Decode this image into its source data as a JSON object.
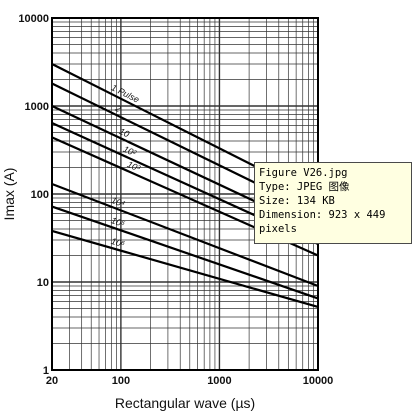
{
  "chart_data": {
    "type": "line",
    "xlabel": "Rectangular wave (µs)",
    "ylabel": "Imax (A)",
    "x_scale": "log",
    "y_scale": "log",
    "xlim": [
      20,
      10000
    ],
    "ylim": [
      1,
      10000
    ],
    "x_ticks": [
      "20",
      "100",
      "1000",
      "10000"
    ],
    "y_ticks": [
      "1",
      "10",
      "100",
      "1000",
      "10000"
    ],
    "grid": true,
    "series": [
      {
        "name": "1 Pulse",
        "x": [
          20,
          10000
        ],
        "y": [
          3000,
          90
        ]
      },
      {
        "name": "2",
        "x": [
          20,
          10000
        ],
        "y": [
          1800,
          60
        ]
      },
      {
        "name": "10",
        "x": [
          20,
          10000
        ],
        "y": [
          1000,
          38
        ]
      },
      {
        "name": "10²",
        "x": [
          20,
          10000
        ],
        "y": [
          640,
          27
        ]
      },
      {
        "name": "10³",
        "x": [
          20,
          10000
        ],
        "y": [
          440,
          20
        ]
      },
      {
        "name": "10⁴",
        "x": [
          20,
          10000
        ],
        "y": [
          130,
          9
        ]
      },
      {
        "name": "10⁵",
        "x": [
          20,
          10000
        ],
        "y": [
          72,
          6.5
        ]
      },
      {
        "name": "10⁶",
        "x": [
          20,
          10000
        ],
        "y": [
          38,
          5.2
        ]
      }
    ]
  },
  "tooltip": {
    "line1": "Figure V26.jpg",
    "line2": "Type: JPEG 图像",
    "line3": "Size: 134 KB",
    "line4": "Dimension: 923 x 449",
    "line5": "pixels"
  }
}
